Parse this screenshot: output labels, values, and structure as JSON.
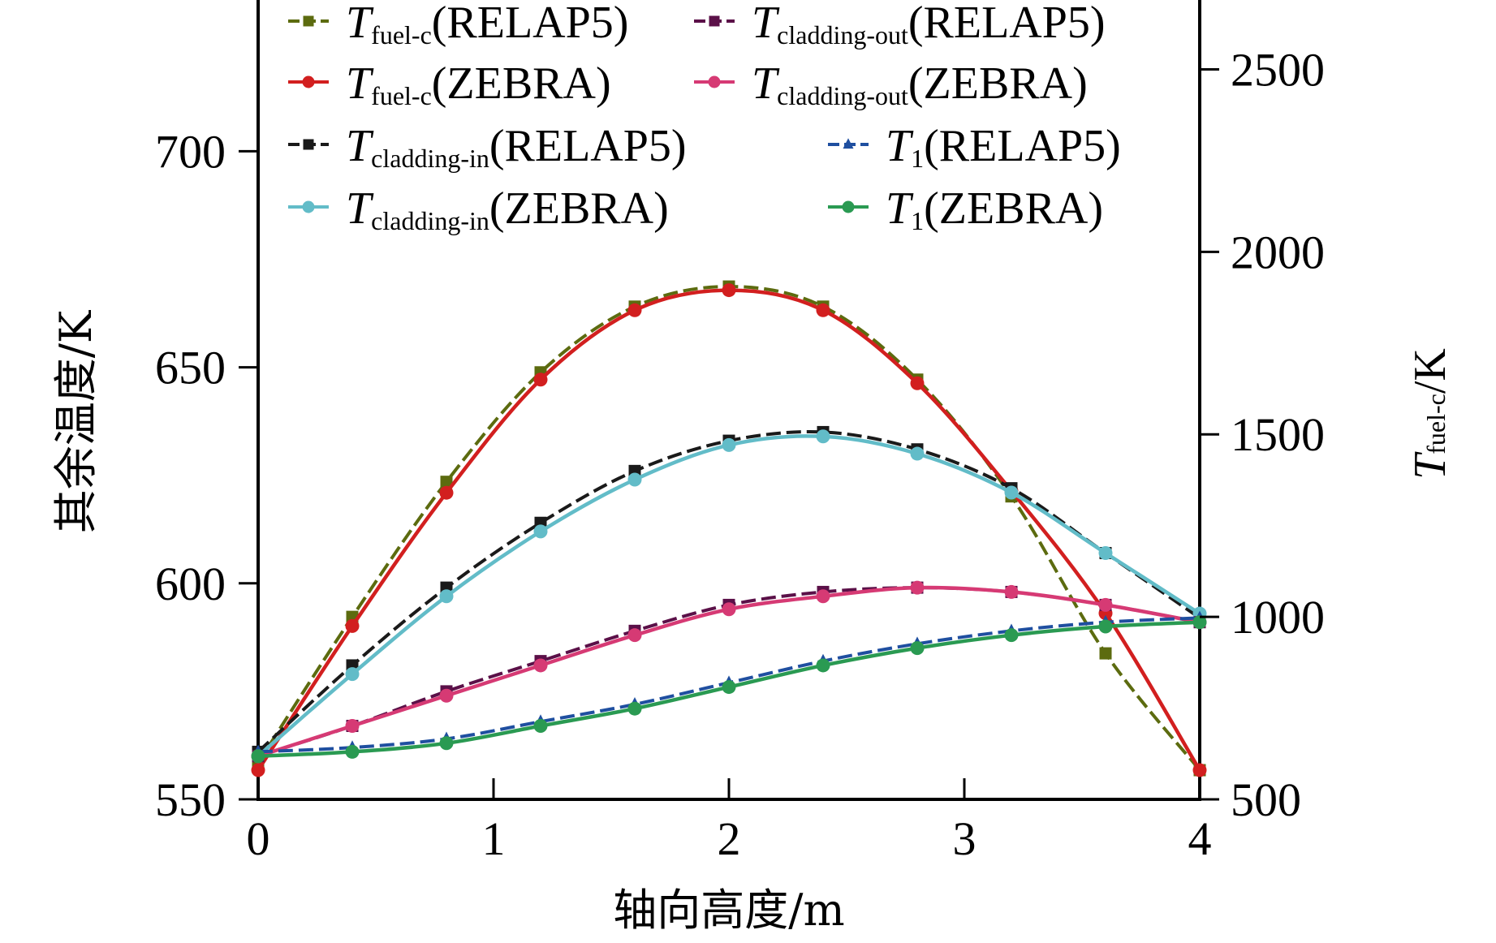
{
  "chart_data": {
    "type": "line",
    "xlabel": "轴向高度/m",
    "ylabel_left": "其余温度/K",
    "ylabel_right": {
      "main": "T",
      "sub": "fuel-c",
      "unit": "/K"
    },
    "xlim": [
      0,
      4
    ],
    "ylim_left": [
      550,
      735
    ],
    "ylim_right": [
      500,
      2690
    ],
    "x_ticks": [
      "0",
      "1",
      "2",
      "3",
      "4"
    ],
    "y_ticks_left": [
      "550",
      "600",
      "650",
      "700"
    ],
    "y_ticks_right": [
      "500",
      "1000",
      "1500",
      "2000",
      "2500"
    ],
    "grid": false,
    "legend_position": "top",
    "series": [
      {
        "name": "Tfuel-c(RELAP5)",
        "legend": {
          "main": "T",
          "sub": "fuel-c",
          "tail": "(RELAP5)"
        },
        "axis": "right",
        "color": "#5c6b0f",
        "marker": "square",
        "dash": true,
        "x": [
          0,
          0.4,
          0.8,
          1.2,
          1.6,
          2.0,
          2.4,
          2.8,
          3.2,
          3.6,
          4.0
        ],
        "y": [
          600,
          1000,
          1370,
          1670,
          1850,
          1905,
          1850,
          1650,
          1330,
          900,
          580
        ]
      },
      {
        "name": "Tfuel-c(ZEBRA)",
        "legend": {
          "main": "T",
          "sub": "fuel-c",
          "tail": "(ZEBRA)"
        },
        "axis": "right",
        "color": "#d21f1f",
        "marker": "circle",
        "dash": false,
        "x": [
          0,
          0.4,
          0.8,
          1.2,
          1.6,
          2.0,
          2.4,
          2.8,
          3.2,
          3.6,
          4.0
        ],
        "y": [
          580,
          975,
          1340,
          1650,
          1840,
          1895,
          1840,
          1640,
          1345,
          1010,
          580
        ]
      },
      {
        "name": "Tcladding-in(RELAP5)",
        "legend": {
          "main": "T",
          "sub": "cladding-in",
          "tail": "(RELAP5)"
        },
        "axis": "left",
        "color": "#1a1a1a",
        "marker": "square",
        "dash": true,
        "x": [
          0,
          0.4,
          0.8,
          1.2,
          1.6,
          2.0,
          2.4,
          2.8,
          3.2,
          3.6,
          4.0
        ],
        "y": [
          561,
          581,
          599,
          614,
          626,
          633,
          635,
          631,
          622,
          607,
          592
        ]
      },
      {
        "name": "Tcladding-in(ZEBRA)",
        "legend": {
          "main": "T",
          "sub": "cladding-in",
          "tail": "(ZEBRA)"
        },
        "axis": "left",
        "color": "#62bcc8",
        "marker": "circle",
        "dash": false,
        "x": [
          0,
          0.4,
          0.8,
          1.2,
          1.6,
          2.0,
          2.4,
          2.8,
          3.2,
          3.6,
          4.0
        ],
        "y": [
          560,
          579,
          597,
          612,
          624,
          632,
          634,
          630,
          621,
          607,
          593
        ]
      },
      {
        "name": "Tcladding-out(RELAP5)",
        "legend": {
          "main": "T",
          "sub": "cladding-out",
          "tail": "(RELAP5)"
        },
        "axis": "left",
        "color": "#5b1048",
        "marker": "square",
        "dash": true,
        "x": [
          0,
          0.4,
          0.8,
          1.2,
          1.6,
          2.0,
          2.4,
          2.8,
          3.2,
          3.6,
          4.0
        ],
        "y": [
          560,
          567,
          575,
          582,
          589,
          595,
          598,
          599,
          598,
          595,
          591
        ]
      },
      {
        "name": "Tcladding-out(ZEBRA)",
        "legend": {
          "main": "T",
          "sub": "cladding-out",
          "tail": "(ZEBRA)"
        },
        "axis": "left",
        "color": "#d63a74",
        "marker": "circle",
        "dash": false,
        "x": [
          0,
          0.4,
          0.8,
          1.2,
          1.6,
          2.0,
          2.4,
          2.8,
          3.2,
          3.6,
          4.0
        ],
        "y": [
          560,
          567,
          574,
          581,
          588,
          594,
          597,
          599,
          598,
          595,
          591
        ]
      },
      {
        "name": "T1(RELAP5)",
        "legend": {
          "main": "T",
          "sub": "1",
          "tail": "(RELAP5)"
        },
        "axis": "left",
        "color": "#1f4fa0",
        "marker": "triangle",
        "dash": true,
        "x": [
          0,
          0.4,
          0.8,
          1.2,
          1.6,
          2.0,
          2.4,
          2.8,
          3.2,
          3.6,
          4.0
        ],
        "y": [
          561,
          562,
          564,
          568,
          572,
          577,
          582,
          586,
          589,
          591,
          592
        ]
      },
      {
        "name": "T1(ZEBRA)",
        "legend": {
          "main": "T",
          "sub": "1",
          "tail": "(ZEBRA)"
        },
        "axis": "left",
        "color": "#2a9a52",
        "marker": "circle",
        "dash": false,
        "x": [
          0,
          0.4,
          0.8,
          1.2,
          1.6,
          2.0,
          2.4,
          2.8,
          3.2,
          3.6,
          4.0
        ],
        "y": [
          560,
          561,
          563,
          567,
          571,
          576,
          581,
          585,
          588,
          590,
          591
        ]
      }
    ]
  }
}
